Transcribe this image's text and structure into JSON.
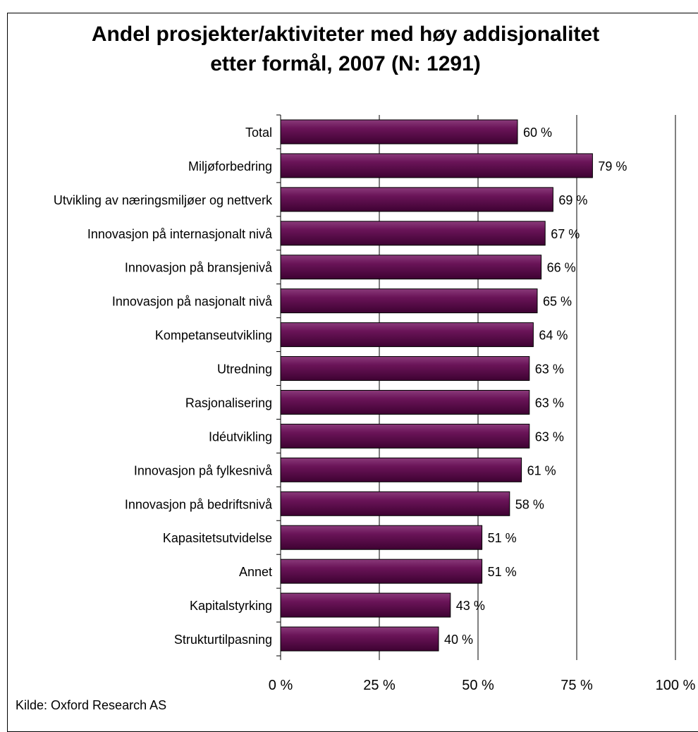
{
  "caption": "",
  "chart_data": {
    "type": "bar",
    "orientation": "horizontal",
    "title": "Andel prosjekter/aktiviteter med høy addisjonalitet etter formål, 2007 (N: 1291)",
    "title_lines": [
      "Andel prosjekter/aktiviteter med høy addisjonalitet",
      "etter formål, 2007 (N: 1291)"
    ],
    "categories": [
      "Total",
      "Miljøforbedring",
      "Utvikling av næringsmiljøer og nettverk",
      "Innovasjon på internasjonalt nivå",
      "Innovasjon på bransjenivå",
      "Innovasjon på nasjonalt nivå",
      "Kompetanseutvikling",
      "Utredning",
      "Rasjonalisering",
      "Idéutvikling",
      "Innovasjon på fylkesnivå",
      "Innovasjon på bedriftsnivå",
      "Kapasitetsutvidelse",
      "Annet",
      "Kapitalstyrking",
      "Strukturtilpasning"
    ],
    "values": [
      60,
      79,
      69,
      67,
      66,
      65,
      64,
      63,
      63,
      63,
      61,
      58,
      51,
      51,
      43,
      40
    ],
    "data_labels": [
      "60 %",
      "79 %",
      "69 %",
      "67 %",
      "66 %",
      "65 %",
      "64 %",
      "63 %",
      "63 %",
      "63 %",
      "61 %",
      "58 %",
      "51 %",
      "51 %",
      "43 %",
      "40 %"
    ],
    "x_ticks": [
      0,
      25,
      50,
      75,
      100
    ],
    "x_tick_labels": [
      "0 %",
      "25 %",
      "50 %",
      "75 %",
      "100 %"
    ],
    "xlim": [
      0,
      100
    ],
    "grid": true,
    "bar_color": "#5e0a4c",
    "source": "Kilde: Oxford Research AS"
  }
}
